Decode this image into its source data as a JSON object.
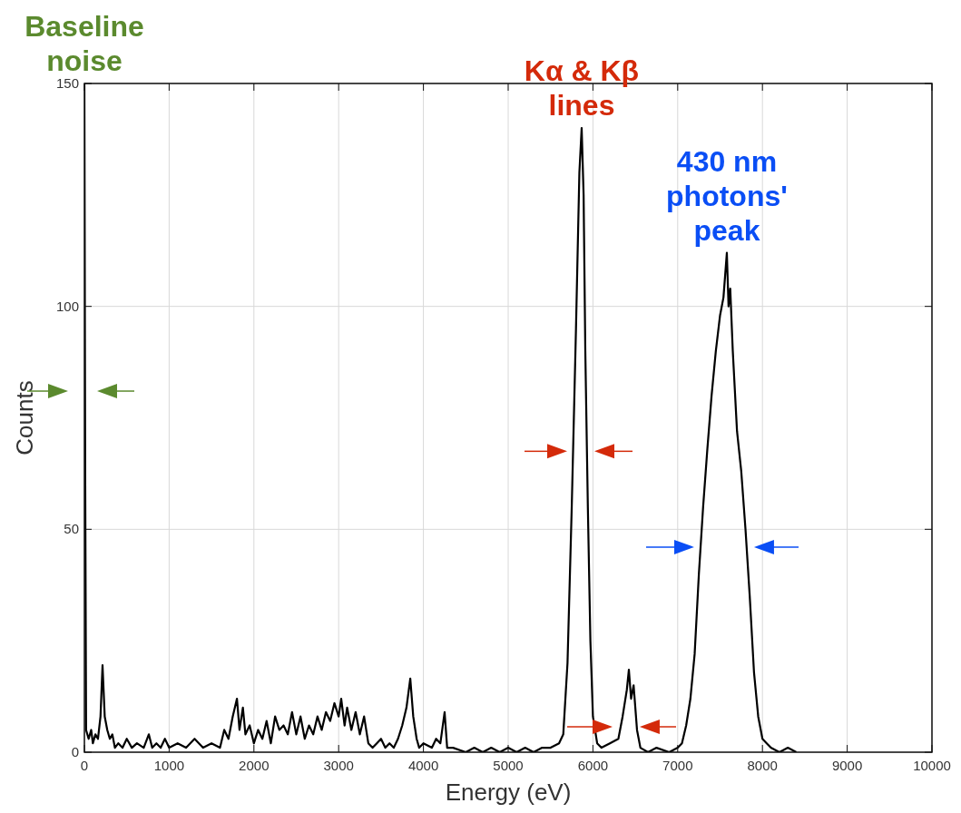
{
  "chart_data": {
    "type": "line",
    "xlabel": "Energy (eV)",
    "ylabel": "Counts",
    "xlim": [
      0,
      10000
    ],
    "ylim": [
      0,
      150
    ],
    "xticks": [
      0,
      1000,
      2000,
      3000,
      4000,
      5000,
      6000,
      7000,
      8000,
      9000,
      10000
    ],
    "yticks": [
      0,
      50,
      100,
      150
    ],
    "grid": true,
    "marker": "none",
    "line_style": "solid",
    "annotations": [
      {
        "text": "Baseline noise",
        "x": 0,
        "y": 150
      },
      {
        "text": "Kα & Kβ lines",
        "x": 5867,
        "y": 140
      },
      {
        "text": "430 nm photons' peak",
        "x": 7580,
        "y": 112
      }
    ],
    "series": [
      {
        "color": "#000000",
        "x": [
          0,
          10,
          20,
          50,
          80,
          100,
          130,
          160,
          190,
          214,
          240,
          270,
          300,
          330,
          360,
          400,
          450,
          500,
          560,
          620,
          700,
          760,
          800,
          850,
          900,
          950,
          1000,
          1100,
          1200,
          1300,
          1400,
          1500,
          1600,
          1650,
          1700,
          1750,
          1800,
          1830,
          1870,
          1900,
          1950,
          2000,
          2050,
          2100,
          2150,
          2200,
          2250,
          2300,
          2350,
          2400,
          2450,
          2500,
          2550,
          2600,
          2650,
          2700,
          2750,
          2800,
          2850,
          2900,
          2950,
          3000,
          3030,
          3070,
          3100,
          3150,
          3200,
          3250,
          3300,
          3350,
          3400,
          3450,
          3500,
          3550,
          3600,
          3650,
          3700,
          3750,
          3800,
          3845,
          3880,
          3920,
          3950,
          4000,
          4100,
          4150,
          4200,
          4250,
          4280,
          4350,
          4500,
          4600,
          4700,
          4800,
          4900,
          5000,
          5100,
          5200,
          5300,
          5400,
          5500,
          5600,
          5650,
          5700,
          5750,
          5800,
          5840,
          5867,
          5890,
          5910,
          5940,
          5970,
          6000,
          6050,
          6100,
          6200,
          6300,
          6350,
          6400,
          6424,
          6450,
          6480,
          6520,
          6560,
          6650,
          6750,
          6900,
          7000,
          7050,
          7100,
          7150,
          7200,
          7250,
          7300,
          7350,
          7400,
          7450,
          7500,
          7540,
          7580,
          7600,
          7620,
          7650,
          7700,
          7750,
          7800,
          7850,
          7900,
          7950,
          8000,
          8050,
          8100,
          8200,
          8300,
          8400
        ],
        "values": [
          150,
          60,
          5,
          3,
          5,
          2,
          4,
          3,
          8,
          19.5,
          8,
          5,
          3,
          4,
          1,
          2,
          1,
          3,
          1,
          2,
          1,
          4,
          1,
          2,
          1,
          3,
          1,
          2,
          1,
          3,
          1,
          2,
          1,
          5,
          3,
          8,
          12,
          5,
          10,
          4,
          6,
          2,
          5,
          3,
          7,
          2,
          8,
          5,
          6,
          4,
          9,
          4,
          8,
          3,
          6,
          4,
          8,
          5,
          9,
          7,
          11,
          8,
          12,
          6,
          10,
          5,
          9,
          4,
          8,
          2,
          1,
          2,
          3,
          1,
          2,
          1,
          3,
          6,
          10,
          16.5,
          8,
          3,
          1,
          2,
          1,
          3,
          2,
          9,
          1,
          1,
          0,
          1,
          0,
          1,
          0,
          1,
          0,
          1,
          0,
          1,
          1,
          2,
          4,
          20,
          55,
          95,
          130,
          140,
          125,
          90,
          55,
          25,
          8,
          2,
          1,
          2,
          3,
          8,
          14,
          18.5,
          12,
          15,
          5,
          1,
          0,
          1,
          0,
          1,
          2,
          6,
          12,
          22,
          40,
          55,
          68,
          80,
          90,
          98,
          102,
          112,
          100,
          104,
          90,
          72,
          63,
          50,
          35,
          18,
          8,
          3,
          2,
          1,
          0,
          1,
          0
        ]
      }
    ]
  }
}
